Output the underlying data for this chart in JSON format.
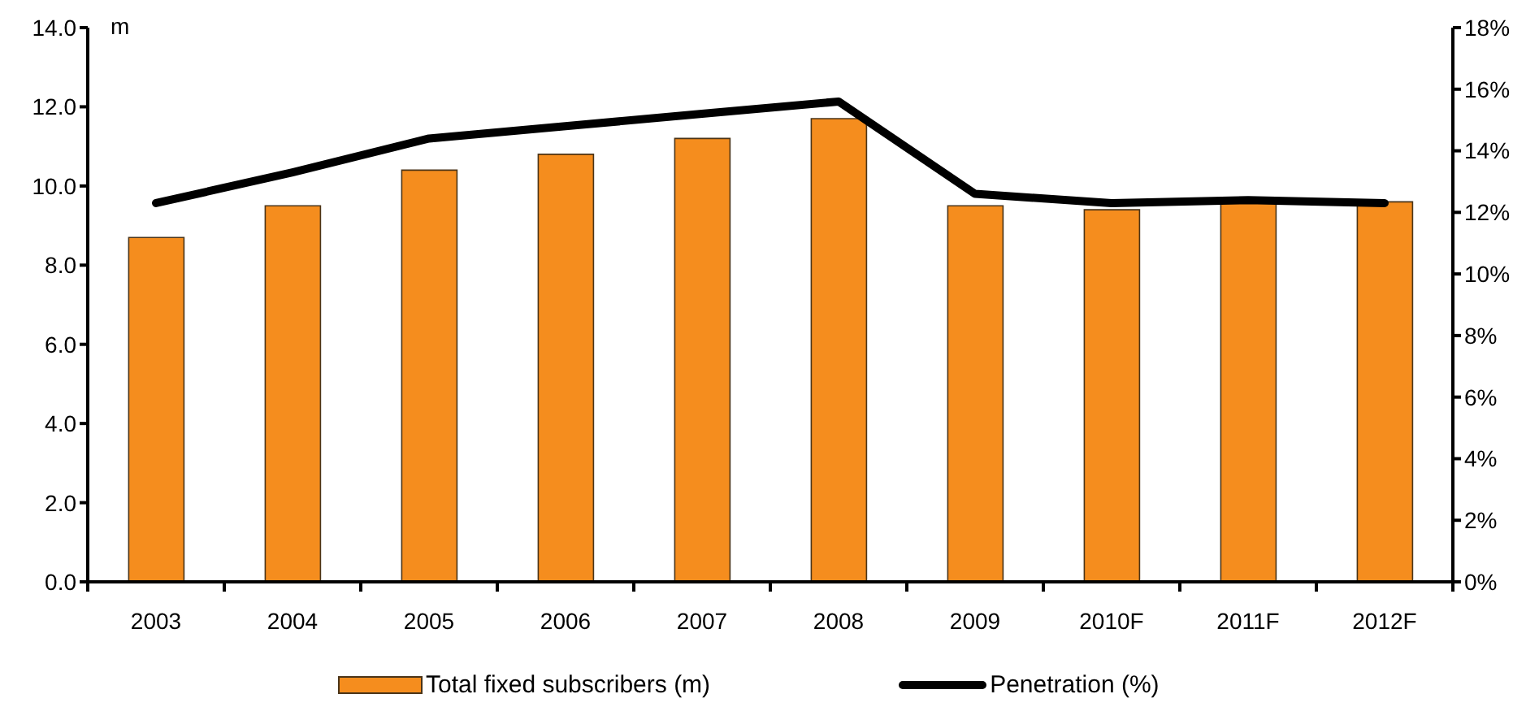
{
  "chart_data": {
    "type": "bar",
    "ylabel": "m",
    "categories": [
      "2003",
      "2004",
      "2005",
      "2006",
      "2007",
      "2008",
      "2009",
      "2010F",
      "2011F",
      "2012F"
    ],
    "series": [
      {
        "name": "Total fixed subscribers (m)",
        "color": "#f58d1e",
        "values": [
          8.7,
          9.5,
          10.4,
          10.8,
          11.2,
          11.7,
          9.5,
          9.4,
          9.6,
          9.6
        ]
      },
      {
        "name": "Penetration (%)",
        "type": "line",
        "axis": "y2",
        "color": "#000000",
        "values": [
          12.3,
          13.3,
          14.4,
          14.8,
          15.2,
          15.6,
          12.6,
          12.3,
          12.4,
          12.3
        ]
      }
    ],
    "ylim": [
      0,
      14
    ],
    "yticks": [
      {
        "value": 0,
        "label": "0.0"
      },
      {
        "value": 2,
        "label": "2.0"
      },
      {
        "value": 4,
        "label": "4.0"
      },
      {
        "value": 6,
        "label": "6.0"
      },
      {
        "value": 8,
        "label": "8.0"
      },
      {
        "value": 10,
        "label": "10.0"
      },
      {
        "value": 12,
        "label": "12.0"
      },
      {
        "value": 14,
        "label": "14.0"
      }
    ],
    "y2lim": [
      0,
      18
    ],
    "y2ticks": [
      {
        "value": 0,
        "label": "0%"
      },
      {
        "value": 2,
        "label": "2%"
      },
      {
        "value": 4,
        "label": "4%"
      },
      {
        "value": 6,
        "label": "6%"
      },
      {
        "value": 8,
        "label": "8%"
      },
      {
        "value": 10,
        "label": "10%"
      },
      {
        "value": 12,
        "label": "12%"
      },
      {
        "value": 14,
        "label": "14%"
      },
      {
        "value": 16,
        "label": "16%"
      },
      {
        "value": 18,
        "label": "18%"
      }
    ],
    "legend": "bottom",
    "marker": "none"
  }
}
